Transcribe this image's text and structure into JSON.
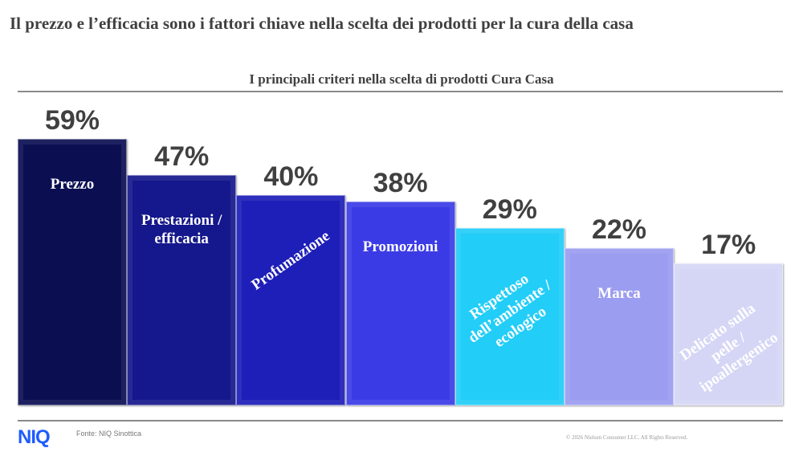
{
  "title": "Il prezzo e l’efficacia sono i fattori chiave nella scelta dei prodotti per la cura della casa",
  "footer": {
    "logo": "NIQ",
    "source": "Fonte: NIQ Sinottica",
    "copyright": "© 2026 Nielsen Consumer LLC. All Rights Reserved."
  },
  "chart_data": {
    "type": "bar",
    "title": "I principali criteri nella scelta di prodotti Cura Casa",
    "categories": [
      "Prezzo",
      "Prestazioni / efficacia",
      "Profumazione",
      "Promozioni",
      "Rispettoso dell’ambiente / ecologico",
      "Marca",
      "Delicato sulla pelle / ipoallergenico"
    ],
    "values": [
      59,
      47,
      40,
      38,
      29,
      22,
      17
    ],
    "value_labels": [
      "59%",
      "47%",
      "40%",
      "38%",
      "29%",
      "22%",
      "17%"
    ],
    "colors": [
      "#0b0f52",
      "#15178c",
      "#1e1eb8",
      "#3b3be6",
      "#22cdf7",
      "#9b9df0",
      "#d5d6f5"
    ],
    "rotated": [
      false,
      false,
      true,
      false,
      true,
      false,
      true
    ],
    "xlabel": "",
    "ylabel": "",
    "unit": "%"
  }
}
